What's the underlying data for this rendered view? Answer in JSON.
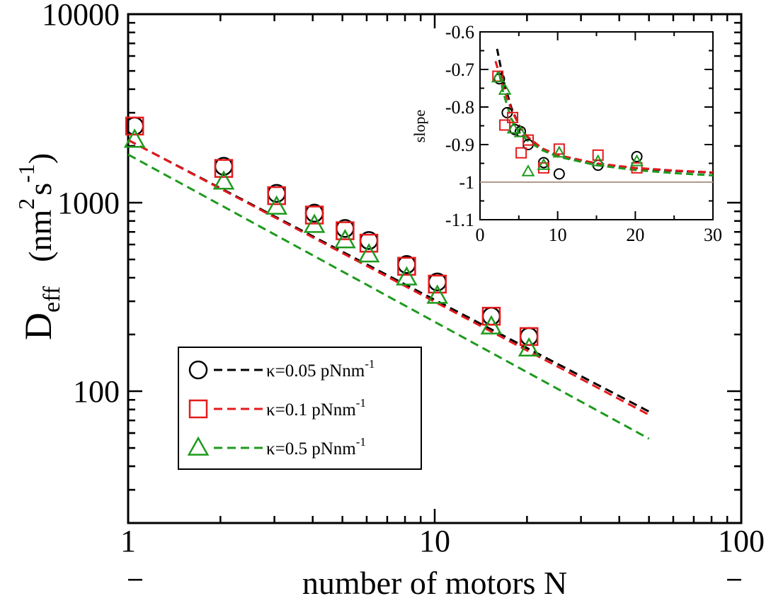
{
  "chart_data": [
    {
      "id": "main",
      "type": "scatter",
      "scale": "log-log",
      "xlabel": "number of motors N",
      "ylabel": {
        "base": "D",
        "sub": "eff",
        "unit_open": "(nm",
        "unit_sup1": "2",
        "unit_mid": "s",
        "unit_sup2": "-1",
        "unit_close": ")"
      },
      "xlim": [
        1,
        100
      ],
      "ylim": [
        20,
        10000
      ],
      "x_ticks": [
        {
          "value": 1,
          "label": "1"
        },
        {
          "value": 10,
          "label": "10"
        },
        {
          "value": 100,
          "label": "100"
        }
      ],
      "y_ticks": [
        {
          "value": 100,
          "label": "100"
        },
        {
          "value": 1000,
          "label": "1000"
        },
        {
          "value": 10000,
          "label": "10000"
        }
      ],
      "series": [
        {
          "name": "κ=0.05 pNnm",
          "sup": "-1",
          "marker": "circle",
          "color": "#000000",
          "points": [
            [
              1.05,
              2550
            ],
            [
              2.05,
              1560
            ],
            [
              3.05,
              1120
            ],
            [
              4.05,
              880
            ],
            [
              5.1,
              730
            ],
            [
              6.1,
              630
            ],
            [
              8.1,
              470
            ],
            [
              10.2,
              380
            ],
            [
              15.3,
              250
            ],
            [
              20.3,
              195
            ]
          ],
          "fit": [
            [
              1.0,
              2150
            ],
            [
              50,
              78
            ]
          ]
        },
        {
          "name": "κ=0.1 pNnm",
          "sup": "-1",
          "marker": "square",
          "color": "#e41a1c",
          "points": [
            [
              1.05,
              2550
            ],
            [
              2.05,
              1520
            ],
            [
              3.05,
              1090
            ],
            [
              4.05,
              860
            ],
            [
              5.1,
              710
            ],
            [
              6.1,
              610
            ],
            [
              8.1,
              460
            ],
            [
              10.2,
              370
            ],
            [
              15.3,
              250
            ],
            [
              20.3,
              195
            ]
          ],
          "fit": [
            [
              1.0,
              2150
            ],
            [
              50,
              75
            ]
          ]
        },
        {
          "name": "κ=0.5 pNnm",
          "sup": "-1",
          "marker": "triangle",
          "color": "#1e9a1e",
          "points": [
            [
              1.05,
              2150
            ],
            [
              2.05,
              1290
            ],
            [
              3.05,
              950
            ],
            [
              4.05,
              760
            ],
            [
              5.1,
              630
            ],
            [
              6.1,
              530
            ],
            [
              8.1,
              400
            ],
            [
              10.2,
              320
            ],
            [
              15.3,
              220
            ],
            [
              20.3,
              168
            ]
          ],
          "fit": [
            [
              1.0,
              1800
            ],
            [
              50,
              56
            ]
          ]
        }
      ],
      "legend_position": "bottom-left"
    },
    {
      "id": "inset",
      "type": "scatter",
      "xlabel": "",
      "ylabel": "slope",
      "xlim": [
        0,
        30
      ],
      "ylim": [
        -1.1,
        -0.6
      ],
      "x_ticks": [
        {
          "value": 0,
          "label": "0"
        },
        {
          "value": 10,
          "label": "10"
        },
        {
          "value": 20,
          "label": "20"
        },
        {
          "value": 30,
          "label": "30"
        }
      ],
      "y_ticks": [
        {
          "value": -0.6,
          "label": "-0.6"
        },
        {
          "value": -0.7,
          "label": "-0.7"
        },
        {
          "value": -0.8,
          "label": "-0.8"
        },
        {
          "value": -0.9,
          "label": "-0.9"
        },
        {
          "value": -1.0,
          "label": "-1"
        },
        {
          "value": -1.1,
          "label": "-1.1"
        }
      ],
      "reference_line": {
        "y": -1.0,
        "color": "#b09a8c"
      },
      "series": [
        {
          "name": "κ=0.05 pNnm-1",
          "marker": "circle",
          "color": "#000000",
          "points": [
            [
              2.5,
              -0.725
            ],
            [
              3.5,
              -0.815
            ],
            [
              4.5,
              -0.86
            ],
            [
              5.2,
              -0.865
            ],
            [
              6.2,
              -0.9
            ],
            [
              8.2,
              -0.948
            ],
            [
              10.2,
              -0.978
            ],
            [
              15.2,
              -0.955
            ],
            [
              20.2,
              -0.932
            ]
          ],
          "fit": [
            [
              2.2,
              -0.645
            ],
            [
              3,
              -0.728
            ],
            [
              4,
              -0.8
            ],
            [
              5,
              -0.848
            ],
            [
              6,
              -0.878
            ],
            [
              8,
              -0.912
            ],
            [
              10,
              -0.93
            ],
            [
              15,
              -0.952
            ],
            [
              20,
              -0.963
            ],
            [
              25,
              -0.97
            ],
            [
              30,
              -0.975
            ]
          ]
        },
        {
          "name": "κ=0.1 pNnm-1",
          "marker": "square",
          "color": "#e41a1c",
          "points": [
            [
              2.3,
              -0.718
            ],
            [
              3.2,
              -0.848
            ],
            [
              4.2,
              -0.828
            ],
            [
              5.3,
              -0.922
            ],
            [
              6.2,
              -0.888
            ],
            [
              8.2,
              -0.962
            ],
            [
              10.2,
              -0.912
            ],
            [
              15.2,
              -0.928
            ],
            [
              20.2,
              -0.962
            ]
          ],
          "fit": [
            [
              2.0,
              -0.678
            ],
            [
              3,
              -0.748
            ],
            [
              4,
              -0.805
            ],
            [
              5,
              -0.848
            ],
            [
              6,
              -0.877
            ],
            [
              8,
              -0.91
            ],
            [
              10,
              -0.928
            ],
            [
              15,
              -0.95
            ],
            [
              20,
              -0.962
            ],
            [
              25,
              -0.969
            ],
            [
              30,
              -0.974
            ]
          ]
        },
        {
          "name": "κ=0.5 pNnm-1",
          "marker": "triangle",
          "color": "#1e9a1e",
          "points": [
            [
              2.3,
              -0.722
            ],
            [
              3.2,
              -0.755
            ],
            [
              4.3,
              -0.858
            ],
            [
              5.2,
              -0.868
            ],
            [
              6.2,
              -0.972
            ],
            [
              8.2,
              -0.955
            ],
            [
              10.2,
              -0.922
            ],
            [
              15.2,
              -0.945
            ],
            [
              20.2,
              -0.945
            ]
          ],
          "fit": [
            [
              2.5,
              -0.712
            ],
            [
              3,
              -0.762
            ],
            [
              4,
              -0.83
            ],
            [
              5,
              -0.866
            ],
            [
              6,
              -0.888
            ],
            [
              8,
              -0.915
            ],
            [
              10,
              -0.932
            ],
            [
              15,
              -0.955
            ],
            [
              20,
              -0.968
            ],
            [
              25,
              -0.976
            ],
            [
              30,
              -0.982
            ]
          ]
        }
      ]
    }
  ]
}
